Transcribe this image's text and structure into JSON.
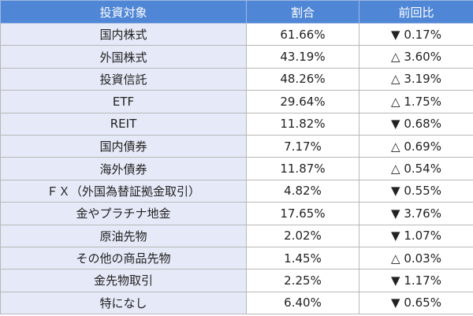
{
  "table": {
    "header": [
      "投資対象",
      "割合",
      "前回比"
    ],
    "rows": [
      [
        "国内株式",
        "61.66%",
        "▼ 0.17%"
      ],
      [
        "外国株式",
        "43.19%",
        "△ 3.60%"
      ],
      [
        "投資信託",
        "48.26%",
        "△ 3.19%"
      ],
      [
        "ETF",
        "29.64%",
        "△ 1.75%"
      ],
      [
        "REIT",
        "11.82%",
        "▼ 0.68%"
      ],
      [
        "国内債券",
        "7.17%",
        "△ 0.69%"
      ],
      [
        "海外債券",
        "11.87%",
        "△ 0.54%"
      ],
      [
        "ＦＸ（外国為替証拠金取引）",
        "4.82%",
        "▼ 0.55%"
      ],
      [
        "金やプラチナ地金",
        "17.65%",
        "▼ 3.76%"
      ],
      [
        "原油先物",
        "2.02%",
        "▼ 1.07%"
      ],
      [
        "その他の商品先物",
        "1.45%",
        "△ 0.03%"
      ],
      [
        "金先物取引",
        "2.25%",
        "▼ 1.17%"
      ],
      [
        "特になし",
        "6.40%",
        "▼ 0.65%"
      ]
    ]
  }
}
